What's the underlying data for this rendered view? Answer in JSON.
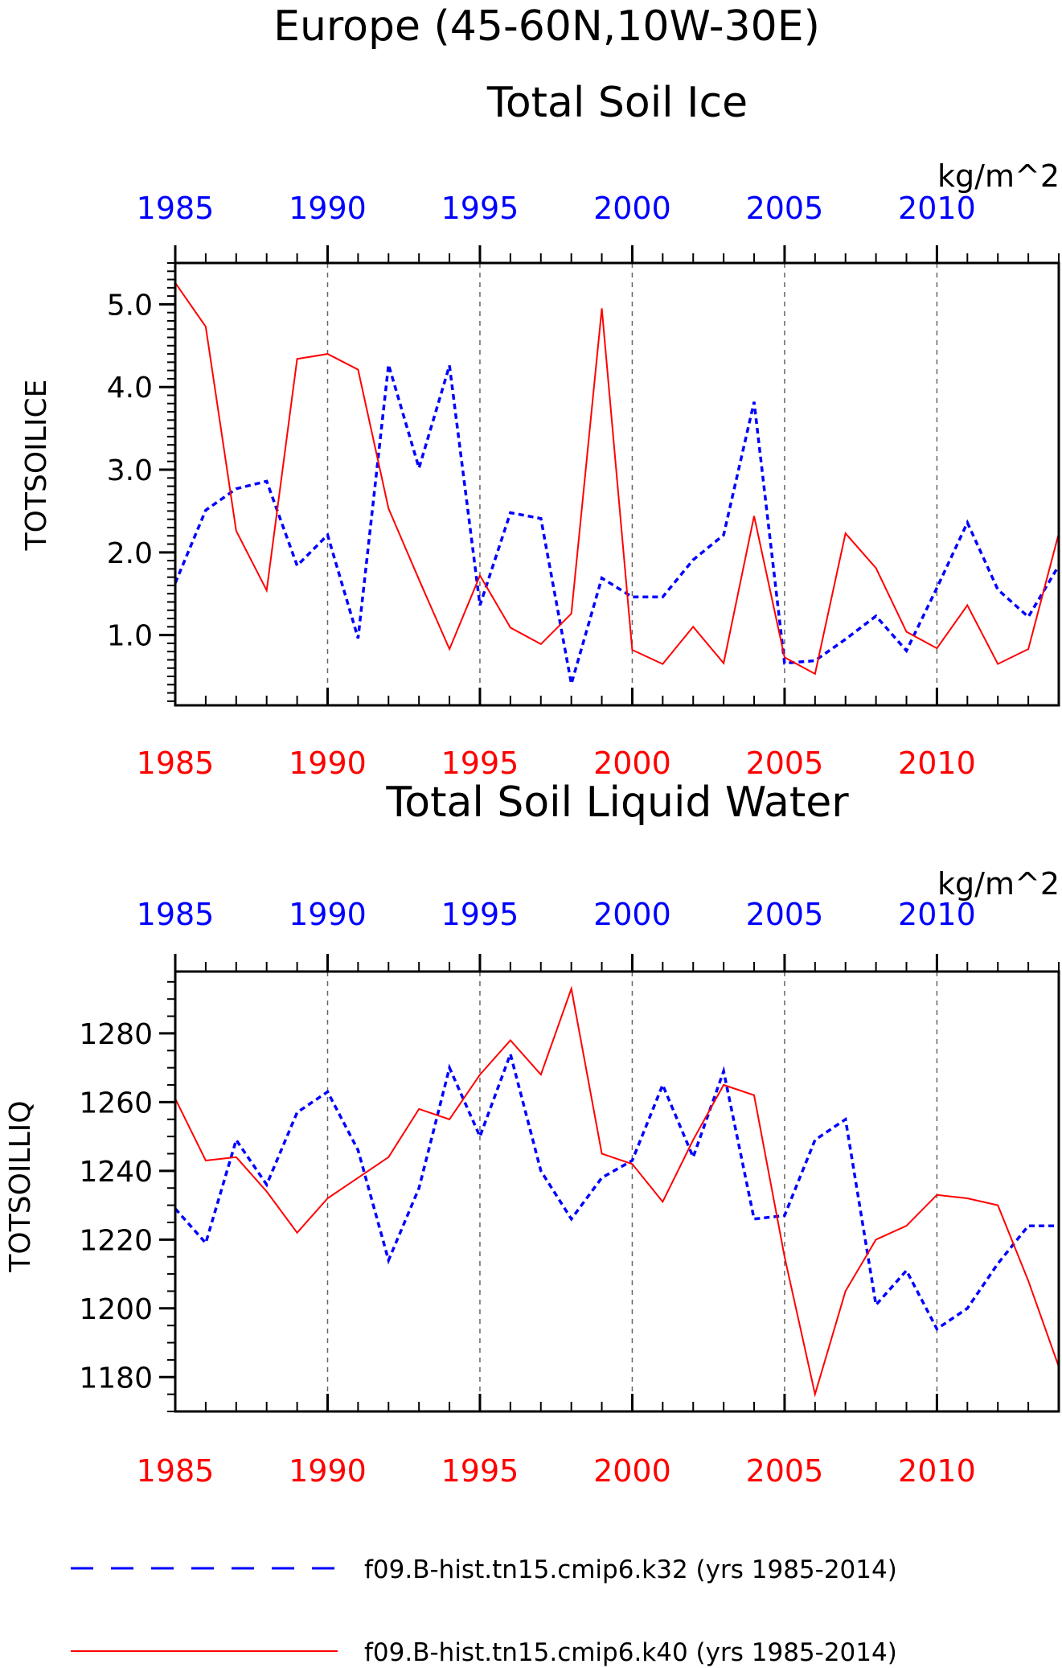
{
  "figure": {
    "region_title": "Europe (45-60N,10W-30E)",
    "series_names": [
      "f09.B-hist.tn15.cmip6.k32 (yrs 1985-2014)",
      "f09.B-hist.tn15.cmip6.k40 (yrs 1985-2014)"
    ],
    "colors": {
      "series1": "#0000ff",
      "series2": "#ff0000",
      "axis": "#000000",
      "grid": "#666666"
    }
  },
  "chart_data": [
    {
      "type": "line",
      "title": "Total Soil Ice",
      "ylabel": "TOTSOILICE",
      "units": "kg/m^2",
      "xlim": [
        1985,
        2014
      ],
      "ylim": [
        0.15,
        5.5
      ],
      "x_ticks": [
        "1985",
        "1990",
        "1995",
        "2000",
        "2005",
        "2010"
      ],
      "y_ticks": [
        "1.0",
        "2.0",
        "3.0",
        "4.0",
        "5.0"
      ],
      "grid": "vertical dashed at major x ticks",
      "x": [
        1985,
        1986,
        1987,
        1988,
        1989,
        1990,
        1991,
        1992,
        1993,
        1994,
        1995,
        1996,
        1997,
        1998,
        1999,
        2000,
        2001,
        2002,
        2003,
        2004,
        2005,
        2006,
        2007,
        2008,
        2009,
        2010,
        2011,
        2012,
        2013,
        2014
      ],
      "series": [
        {
          "name": "f09.B-hist.tn15.cmip6.k32 (yrs 1985-2014)",
          "style": "dashed",
          "color": "#0000ff",
          "values": [
            1.63,
            2.51,
            2.77,
            2.86,
            1.84,
            2.21,
            0.96,
            4.27,
            3.02,
            4.26,
            1.36,
            2.48,
            2.41,
            0.41,
            1.69,
            1.46,
            1.46,
            1.91,
            2.21,
            3.82,
            0.66,
            0.69,
            0.95,
            1.23,
            0.81,
            1.57,
            2.36,
            1.55,
            1.22,
            1.84
          ]
        },
        {
          "name": "f09.B-hist.tn15.cmip6.k40 (yrs 1985-2014)",
          "style": "solid",
          "color": "#ff0000",
          "values": [
            5.26,
            4.73,
            2.26,
            1.54,
            4.34,
            4.4,
            4.21,
            2.53,
            1.67,
            0.83,
            1.72,
            1.09,
            0.89,
            1.26,
            4.95,
            0.82,
            0.65,
            1.1,
            0.66,
            2.44,
            0.73,
            0.53,
            2.23,
            1.81,
            1.04,
            0.84,
            1.36,
            0.65,
            0.83,
            2.23
          ]
        }
      ]
    },
    {
      "type": "line",
      "title": "Total Soil Liquid Water",
      "ylabel": "TOTSOILLIQ",
      "units": "kg/m^2",
      "xlim": [
        1985,
        2014
      ],
      "ylim": [
        1170,
        1298
      ],
      "x_ticks": [
        "1985",
        "1990",
        "1995",
        "2000",
        "2005",
        "2010"
      ],
      "y_ticks": [
        "1180",
        "1200",
        "1220",
        "1240",
        "1260",
        "1280"
      ],
      "grid": "vertical dashed at major x ticks",
      "x": [
        1985,
        1986,
        1987,
        1988,
        1989,
        1990,
        1991,
        1992,
        1993,
        1994,
        1995,
        1996,
        1997,
        1998,
        1999,
        2000,
        2001,
        2002,
        2003,
        2004,
        2005,
        2006,
        2007,
        2008,
        2009,
        2010,
        2011,
        2012,
        2013,
        2014
      ],
      "series": [
        {
          "name": "f09.B-hist.tn15.cmip6.k32 (yrs 1985-2014)",
          "style": "dashed",
          "color": "#0000ff",
          "values": [
            1229,
            1219,
            1249,
            1236,
            1257,
            1263,
            1246,
            1214,
            1235,
            1270,
            1250,
            1274,
            1240,
            1226,
            1238,
            1243,
            1265,
            1244,
            1269,
            1226,
            1227,
            1249,
            1255,
            1201,
            1211,
            1194,
            1200,
            1213,
            1224,
            1224
          ]
        },
        {
          "name": "f09.B-hist.tn15.cmip6.k40 (yrs 1985-2014)",
          "style": "solid",
          "color": "#ff0000",
          "values": [
            1261,
            1243,
            1244,
            1234,
            1222,
            1232,
            1238,
            1244,
            1258,
            1255,
            1268,
            1278,
            1268,
            1293,
            1245,
            1242,
            1231,
            1249,
            1265,
            1262,
            1215,
            1175,
            1205,
            1220,
            1224,
            1233,
            1232,
            1230,
            1208,
            1183
          ]
        }
      ]
    }
  ]
}
